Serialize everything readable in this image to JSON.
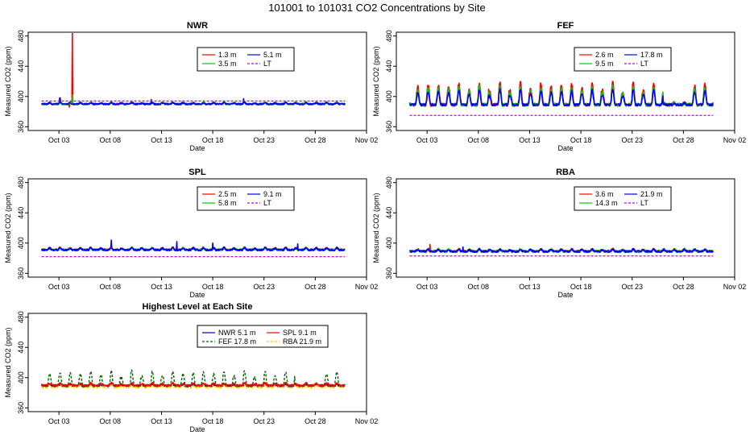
{
  "figure": {
    "title": "101001  to  101031 CO2 Concentrations by Site"
  },
  "chart_data": [
    {
      "type": "line",
      "title": "NWR",
      "xlabel": "Date",
      "ylabel": "Measured CO2 (ppm)",
      "x_range_days": [
        0,
        33
      ],
      "x_ticks": [
        "Oct 03",
        "Oct 08",
        "Oct 13",
        "Oct 18",
        "Oct 23",
        "Oct 28",
        "Nov 02"
      ],
      "y_ticks": [
        360,
        400,
        440,
        480
      ],
      "ylim": [
        355,
        485
      ],
      "series": [
        {
          "name": "1.3 m",
          "color": "#ff0000",
          "style": "solid",
          "baseline": 390,
          "amplitude": 2,
          "noise": 1.0,
          "spikes": [
            [
              4.3,
              485
            ],
            [
              4.0,
              386
            ]
          ]
        },
        {
          "name": "3.5 m",
          "color": "#00cc00",
          "style": "solid",
          "baseline": 390,
          "amplitude": 2,
          "noise": 1.0,
          "spikes": [
            [
              4.3,
              402
            ]
          ]
        },
        {
          "name": "5.1 m",
          "color": "#0000ff",
          "style": "solid",
          "baseline": 390,
          "amplitude": 2,
          "noise": 1.0,
          "spikes": [
            [
              3.1,
              398
            ],
            [
              12.0,
              396
            ],
            [
              21.0,
              397
            ]
          ]
        },
        {
          "name": "LT",
          "color": "#cc00cc",
          "style": "dashed",
          "constant": 394
        }
      ]
    },
    {
      "type": "line",
      "title": "FEF",
      "xlabel": "Date",
      "ylabel": "Measured CO2 (ppm)",
      "x_range_days": [
        0,
        33
      ],
      "x_ticks": [
        "Oct 03",
        "Oct 08",
        "Oct 13",
        "Oct 18",
        "Oct 23",
        "Oct 28",
        "Nov 02"
      ],
      "y_ticks": [
        360,
        400,
        440,
        480
      ],
      "ylim": [
        355,
        485
      ],
      "series": [
        {
          "name": "2.6 m",
          "color": "#ff0000",
          "style": "solid",
          "baseline": 389,
          "amplitude": 30,
          "noise": 2.0,
          "spikes": []
        },
        {
          "name": "9.5 m",
          "color": "#00cc00",
          "style": "solid",
          "baseline": 389,
          "amplitude": 25,
          "noise": 2.0,
          "spikes": []
        },
        {
          "name": "17.8 m",
          "color": "#0000ff",
          "style": "solid",
          "baseline": 389,
          "amplitude": 20,
          "noise": 1.5,
          "spikes": []
        },
        {
          "name": "LT",
          "color": "#cc00cc",
          "style": "dashed",
          "constant": 375
        }
      ]
    },
    {
      "type": "line",
      "title": "SPL",
      "xlabel": "Date",
      "ylabel": "Measured CO2 (ppm)",
      "x_range_days": [
        0,
        33
      ],
      "x_ticks": [
        "Oct 03",
        "Oct 08",
        "Oct 13",
        "Oct 18",
        "Oct 23",
        "Oct 28",
        "Nov 02"
      ],
      "y_ticks": [
        360,
        400,
        440,
        480
      ],
      "ylim": [
        355,
        485
      ],
      "series": [
        {
          "name": "2.5 m",
          "color": "#ff0000",
          "style": "solid",
          "baseline": 391,
          "amplitude": 3,
          "noise": 1.2,
          "spikes": []
        },
        {
          "name": "5.8 m",
          "color": "#00cc00",
          "style": "solid",
          "baseline": 391,
          "amplitude": 3,
          "noise": 1.2,
          "spikes": []
        },
        {
          "name": "9.1 m",
          "color": "#0000ff",
          "style": "solid",
          "baseline": 391,
          "amplitude": 3,
          "noise": 1.2,
          "spikes": [
            [
              8.1,
              404
            ],
            [
              14.5,
              402
            ],
            [
              18.0,
              400
            ],
            [
              26.3,
              399
            ]
          ]
        },
        {
          "name": "LT",
          "color": "#cc00cc",
          "style": "dashed",
          "constant": 382
        }
      ]
    },
    {
      "type": "line",
      "title": "RBA",
      "xlabel": "Date",
      "ylabel": "Measured CO2 (ppm)",
      "x_range_days": [
        0,
        33
      ],
      "x_ticks": [
        "Oct 03",
        "Oct 08",
        "Oct 13",
        "Oct 18",
        "Oct 23",
        "Oct 28",
        "Nov 02"
      ],
      "y_ticks": [
        360,
        400,
        440,
        480
      ],
      "ylim": [
        355,
        485
      ],
      "series": [
        {
          "name": "3.6 m",
          "color": "#ff0000",
          "style": "solid",
          "baseline": 389,
          "amplitude": 3,
          "noise": 1.5,
          "spikes": [
            [
              1.2,
              397
            ],
            [
              3.3,
              398
            ]
          ]
        },
        {
          "name": "14.3 m",
          "color": "#00cc00",
          "style": "solid",
          "baseline": 389,
          "amplitude": 3,
          "noise": 1.5,
          "spikes": []
        },
        {
          "name": "21.9 m",
          "color": "#0000ff",
          "style": "solid",
          "baseline": 389,
          "amplitude": 3,
          "noise": 1.2,
          "spikes": [
            [
              6.5,
              395
            ]
          ]
        },
        {
          "name": "LT",
          "color": "#cc00cc",
          "style": "dashed",
          "constant": 383
        }
      ]
    },
    {
      "type": "line",
      "title": "Highest Level at Each Site",
      "xlabel": "Date",
      "ylabel": "Measured CO2 (ppm)",
      "x_range_days": [
        0,
        33
      ],
      "x_ticks": [
        "Oct 03",
        "Oct 08",
        "Oct 13",
        "Oct 18",
        "Oct 23",
        "Oct 28",
        "Nov 02"
      ],
      "y_ticks": [
        360,
        400,
        440,
        480
      ],
      "ylim": [
        355,
        485
      ],
      "series": [
        {
          "name": "NWR",
          "height": "5.1 m",
          "color": "#0000aa",
          "style": "solid",
          "baseline": 389,
          "amplitude": 2,
          "noise": 1.0,
          "spikes": []
        },
        {
          "name": "FEF",
          "height": "17.8 m",
          "color": "#006600",
          "style": "dashed",
          "baseline": 389,
          "amplitude": 20,
          "noise": 1.5,
          "spikes": []
        },
        {
          "name": "SPL",
          "height": "9.1 m",
          "color": "#ff0000",
          "style": "solid",
          "baseline": 390,
          "amplitude": 3,
          "noise": 1.0,
          "spikes": []
        },
        {
          "name": "RBA",
          "height": "21.9 m",
          "color": "#ffcc00",
          "style": "dashed",
          "baseline": 387,
          "amplitude": 3,
          "noise": 1.0,
          "spikes": []
        }
      ]
    }
  ]
}
